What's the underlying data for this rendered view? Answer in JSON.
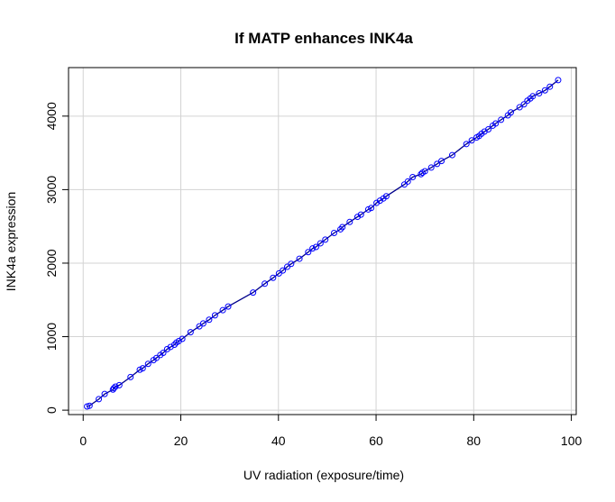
{
  "chart_data": {
    "type": "scatter",
    "title": "If MATP enhances INK4a",
    "xlabel": "UV radiation (exposure/time)",
    "ylabel": "INK4a expression",
    "xlim": [
      -3,
      101
    ],
    "ylim": [
      -60,
      4660
    ],
    "xticks": [
      0,
      20,
      40,
      60,
      80,
      100
    ],
    "yticks": [
      0,
      1000,
      2000,
      3000,
      4000
    ],
    "grid": true,
    "color": "#0000ff",
    "line_color": "#00008b",
    "series": [
      {
        "x": [
          0.8,
          1.3,
          3.2,
          4.4,
          6.1,
          6.3,
          6.6,
          7.4,
          9.7,
          11.6,
          12.2,
          13.3,
          14.4,
          15.0,
          15.8,
          16.4,
          17.2,
          17.9,
          18.7,
          19.1,
          19.6,
          20.3,
          22.0,
          23.8,
          24.6,
          25.8,
          27.0,
          28.6,
          29.7,
          34.8,
          37.2,
          38.9,
          40.1,
          40.9,
          41.8,
          42.6,
          44.3,
          46.1,
          47.0,
          47.7,
          48.6,
          49.6,
          51.4,
          52.7,
          53.1,
          54.6,
          56.2,
          56.9,
          58.4,
          59.0,
          60.1,
          60.8,
          61.5,
          62.1,
          65.8,
          66.5,
          67.5,
          69.2,
          69.5,
          70.0,
          71.3,
          72.5,
          73.4,
          75.6,
          78.5,
          79.6,
          80.6,
          81.1,
          81.6,
          82.2,
          83.0,
          83.9,
          84.5,
          85.6,
          87.0,
          87.6,
          89.4,
          90.3,
          91.0,
          91.6,
          92.1,
          93.4,
          94.6,
          95.6,
          97.3
        ],
        "y": [
          50,
          60,
          150,
          220,
          280,
          300,
          320,
          340,
          450,
          550,
          570,
          630,
          680,
          710,
          750,
          780,
          830,
          860,
          890,
          920,
          940,
          970,
          1060,
          1140,
          1180,
          1230,
          1290,
          1360,
          1410,
          1600,
          1720,
          1800,
          1860,
          1900,
          1950,
          1990,
          2060,
          2150,
          2200,
          2220,
          2270,
          2320,
          2410,
          2460,
          2490,
          2560,
          2630,
          2660,
          2730,
          2750,
          2820,
          2850,
          2880,
          2910,
          3070,
          3110,
          3170,
          3210,
          3230,
          3250,
          3300,
          3350,
          3390,
          3470,
          3620,
          3670,
          3710,
          3730,
          3760,
          3790,
          3820,
          3870,
          3900,
          3950,
          4010,
          4050,
          4120,
          4160,
          4210,
          4240,
          4270,
          4310,
          4350,
          4400,
          4490
        ]
      }
    ]
  }
}
